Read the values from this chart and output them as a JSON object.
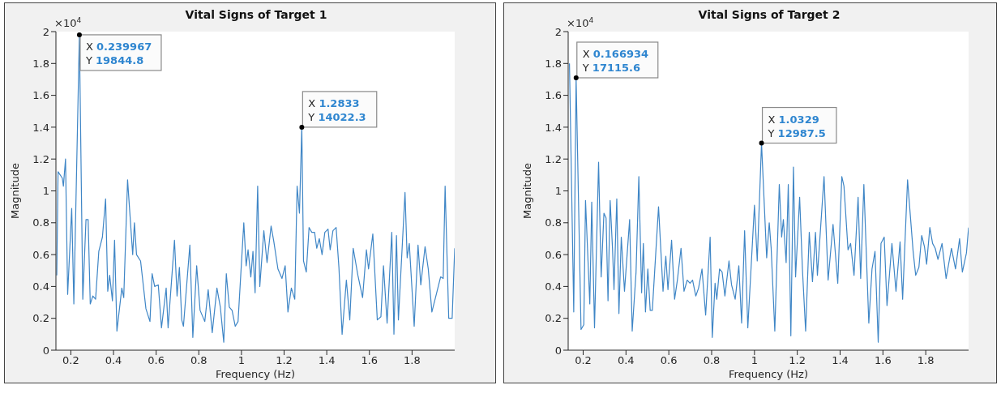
{
  "chart_data": [
    {
      "type": "line",
      "title": "Vital Signs of Target 1",
      "xlabel": "Frequency (Hz)",
      "ylabel": "Magnitude",
      "xlim": [
        0.13,
        2.0
      ],
      "xticks": [
        0.2,
        0.4,
        0.6,
        0.8,
        1,
        1.2,
        1.4,
        1.6,
        1.8
      ],
      "ylim": [
        0,
        2
      ],
      "yticks": [
        0,
        0.2,
        0.4,
        0.6,
        0.8,
        1,
        1.2,
        1.4,
        1.6,
        1.8,
        2
      ],
      "grid": false,
      "marker": "none",
      "line_style": "solid",
      "series": [
        {
          "color": "#3f86c6",
          "x": [
            0.134,
            0.14,
            0.16,
            0.165,
            0.175,
            0.185,
            0.204,
            0.214,
            0.24,
            0.256,
            0.271,
            0.281,
            0.291,
            0.303,
            0.316,
            0.331,
            0.348,
            0.363,
            0.373,
            0.382,
            0.395,
            0.405,
            0.416,
            0.439,
            0.448,
            0.466,
            0.49,
            0.498,
            0.508,
            0.527,
            0.552,
            0.571,
            0.581,
            0.593,
            0.61,
            0.625,
            0.647,
            0.656,
            0.686,
            0.698,
            0.709,
            0.72,
            0.728,
            0.758,
            0.772,
            0.79,
            0.806,
            0.828,
            0.844,
            0.863,
            0.885,
            0.901,
            0.917,
            0.929,
            0.943,
            0.956,
            0.971,
            0.984,
            1.011,
            1.022,
            1.031,
            1.044,
            1.054,
            1.064,
            1.076,
            1.086,
            1.105,
            1.12,
            1.139,
            1.152,
            1.171,
            1.19,
            1.205,
            1.218,
            1.234,
            1.25,
            1.261,
            1.272,
            1.283,
            1.291,
            1.304,
            1.317,
            1.33,
            1.343,
            1.353,
            1.365,
            1.378,
            1.391,
            1.406,
            1.416,
            1.429,
            1.444,
            1.457,
            1.472,
            1.492,
            1.508,
            1.524,
            1.546,
            1.568,
            1.586,
            1.596,
            1.616,
            1.637,
            1.654,
            1.666,
            1.683,
            1.705,
            1.715,
            1.727,
            1.736,
            1.767,
            1.777,
            1.787,
            1.81,
            1.828,
            1.841,
            1.861,
            1.876,
            1.893,
            1.908,
            1.934,
            1.946,
            1.955,
            1.972,
            1.988,
            2.0
          ],
          "values": [
            0.47,
            1.12,
            1.08,
            1.03,
            1.2,
            0.35,
            0.89,
            0.29,
            1.98,
            0.32,
            0.82,
            0.82,
            0.29,
            0.34,
            0.32,
            0.62,
            0.71,
            0.95,
            0.37,
            0.47,
            0.31,
            0.69,
            0.12,
            0.39,
            0.33,
            1.07,
            0.6,
            0.8,
            0.6,
            0.56,
            0.26,
            0.18,
            0.48,
            0.4,
            0.41,
            0.14,
            0.39,
            0.14,
            0.69,
            0.34,
            0.52,
            0.19,
            0.15,
            0.66,
            0.08,
            0.53,
            0.25,
            0.18,
            0.38,
            0.11,
            0.39,
            0.27,
            0.05,
            0.48,
            0.27,
            0.25,
            0.15,
            0.18,
            0.8,
            0.53,
            0.63,
            0.46,
            0.62,
            0.36,
            1.03,
            0.4,
            0.75,
            0.55,
            0.78,
            0.68,
            0.51,
            0.45,
            0.53,
            0.24,
            0.39,
            0.32,
            1.03,
            0.86,
            1.4,
            0.56,
            0.49,
            0.77,
            0.74,
            0.74,
            0.64,
            0.7,
            0.6,
            0.74,
            0.76,
            0.63,
            0.75,
            0.77,
            0.52,
            0.1,
            0.44,
            0.19,
            0.64,
            0.47,
            0.33,
            0.63,
            0.51,
            0.73,
            0.19,
            0.21,
            0.53,
            0.17,
            0.74,
            0.1,
            0.72,
            0.19,
            0.99,
            0.58,
            0.67,
            0.15,
            0.66,
            0.41,
            0.65,
            0.51,
            0.24,
            0.32,
            0.46,
            0.45,
            1.03,
            0.2,
            0.2,
            0.64
          ]
        }
      ],
      "annotations": [
        "×10$^{4}$",
        {
          "text": "X 0.239967\nY 19844.8",
          "x": 0.24,
          "y": 1.98
        },
        {
          "text": "X 1.2833\nY 14022.3",
          "x": 1.283,
          "y": 1.4
        }
      ]
    },
    {
      "type": "line",
      "title": "Vital Signs of Target 2",
      "xlabel": "Frequency (Hz)",
      "ylabel": "Magnitude",
      "xlim": [
        0.13,
        2.0
      ],
      "xticks": [
        0.2,
        0.4,
        0.6,
        0.8,
        1,
        1.2,
        1.4,
        1.6,
        1.8
      ],
      "ylim": [
        0,
        2
      ],
      "yticks": [
        0,
        0.2,
        0.4,
        0.6,
        0.8,
        1,
        1.2,
        1.4,
        1.6,
        1.8,
        2
      ],
      "grid": false,
      "marker": "none",
      "line_style": "solid",
      "series": [
        {
          "color": "#3f86c6",
          "x": [
            0.136,
            0.156,
            0.167,
            0.19,
            0.203,
            0.211,
            0.231,
            0.24,
            0.253,
            0.272,
            0.284,
            0.297,
            0.307,
            0.316,
            0.326,
            0.337,
            0.344,
            0.357,
            0.367,
            0.378,
            0.393,
            0.417,
            0.429,
            0.447,
            0.46,
            0.473,
            0.481,
            0.491,
            0.502,
            0.513,
            0.523,
            0.552,
            0.573,
            0.586,
            0.596,
            0.613,
            0.627,
            0.64,
            0.657,
            0.671,
            0.686,
            0.699,
            0.711,
            0.726,
            0.739,
            0.755,
            0.772,
            0.793,
            0.803,
            0.816,
            0.824,
            0.837,
            0.849,
            0.862,
            0.881,
            0.893,
            0.91,
            0.927,
            0.94,
            0.954,
            0.969,
            1.0,
            1.013,
            1.033,
            1.057,
            1.069,
            1.078,
            1.095,
            1.116,
            1.127,
            1.135,
            1.148,
            1.158,
            1.17,
            1.182,
            1.192,
            1.211,
            1.224,
            1.239,
            1.256,
            1.271,
            1.285,
            1.294,
            1.325,
            1.344,
            1.367,
            1.389,
            1.408,
            1.418,
            1.437,
            1.449,
            1.465,
            1.484,
            1.496,
            1.511,
            1.534,
            1.549,
            1.563,
            1.578,
            1.591,
            1.606,
            1.619,
            1.642,
            1.661,
            1.68,
            1.692,
            1.715,
            1.741,
            1.753,
            1.768,
            1.781,
            1.794,
            1.804,
            1.819,
            1.832,
            1.844,
            1.857,
            1.876,
            1.895,
            1.92,
            1.939,
            1.958,
            1.971,
            1.99,
            2.0
          ],
          "values": [
            1.8,
            0.24,
            1.71,
            0.13,
            0.16,
            0.94,
            0.29,
            0.93,
            0.14,
            1.18,
            0.46,
            0.86,
            0.83,
            0.31,
            0.94,
            0.64,
            0.38,
            0.95,
            0.23,
            0.71,
            0.37,
            0.82,
            0.12,
            0.49,
            1.09,
            0.36,
            0.67,
            0.24,
            0.51,
            0.25,
            0.25,
            0.9,
            0.37,
            0.59,
            0.38,
            0.69,
            0.32,
            0.44,
            0.64,
            0.37,
            0.44,
            0.42,
            0.44,
            0.34,
            0.39,
            0.51,
            0.22,
            0.71,
            0.08,
            0.42,
            0.32,
            0.51,
            0.49,
            0.34,
            0.56,
            0.41,
            0.32,
            0.53,
            0.17,
            0.75,
            0.14,
            0.91,
            0.56,
            1.3,
            0.58,
            0.8,
            0.64,
            0.12,
            1.04,
            0.71,
            0.82,
            0.55,
            1.04,
            0.09,
            1.15,
            0.46,
            0.96,
            0.51,
            0.12,
            0.74,
            0.43,
            0.74,
            0.47,
            1.09,
            0.44,
            0.79,
            0.42,
            1.09,
            1.03,
            0.63,
            0.67,
            0.47,
            0.96,
            0.45,
            1.04,
            0.17,
            0.51,
            0.62,
            0.05,
            0.67,
            0.71,
            0.28,
            0.67,
            0.37,
            0.68,
            0.32,
            1.07,
            0.62,
            0.47,
            0.52,
            0.72,
            0.65,
            0.54,
            0.77,
            0.67,
            0.64,
            0.57,
            0.67,
            0.45,
            0.64,
            0.51,
            0.7,
            0.49,
            0.61,
            0.77
          ]
        }
      ],
      "annotations": [
        "×10$^{4}$",
        {
          "text": "X 0.166934\nY 17115.6",
          "x": 0.167,
          "y": 1.71
        },
        {
          "text": "X 1.0329\nY 12987.5",
          "x": 1.033,
          "y": 1.3
        }
      ]
    }
  ]
}
